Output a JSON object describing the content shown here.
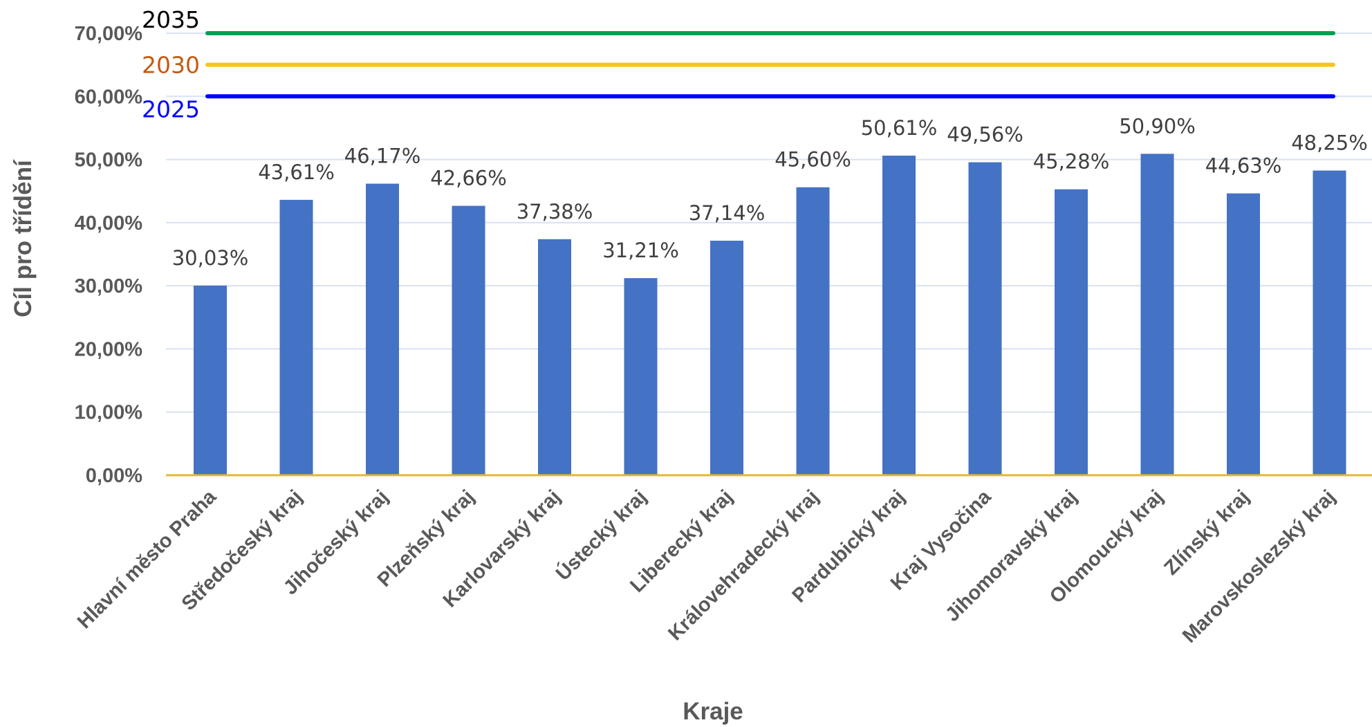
{
  "chart_data": {
    "type": "bar",
    "title": "",
    "xlabel": "Kraje",
    "ylabel": "Cíl pro třídění",
    "ylim": [
      0,
      70
    ],
    "y_ticks": [
      "0,00%",
      "10,00%",
      "20,00%",
      "30,00%",
      "40,00%",
      "50,00%",
      "60,00%",
      "70,00%"
    ],
    "grid": true,
    "bar_color": "#4472C4",
    "categories": [
      "Hlavní město Praha",
      "Středočeský kraj",
      "Jihočeský kraj",
      "Plzeňský kraj",
      "Karlovarský kraj",
      "Ústecký kraj",
      "Liberecký kraj",
      "Královehradecký kraj",
      "Pardubický kraj",
      "Kraj Vysočina",
      "Jihomoravský kraj",
      "Olomoucký kraj",
      "Zlínský kraj",
      "Marovskoslezský kraj"
    ],
    "values": [
      30.03,
      43.61,
      46.17,
      42.66,
      37.38,
      31.21,
      37.14,
      45.6,
      50.61,
      49.56,
      45.28,
      50.9,
      44.63,
      48.25
    ],
    "data_labels": [
      "30,03%",
      "43,61%",
      "46,17%",
      "42,66%",
      "37,38%",
      "31,21%",
      "37,14%",
      "45,60%",
      "50,61%",
      "49,56%",
      "45,28%",
      "50,90%",
      "44,63%",
      "48,25%"
    ],
    "target_lines": [
      {
        "label": "2035",
        "value": 70,
        "color": "#00A050",
        "label_color": "#000000"
      },
      {
        "label": "2030",
        "value": 65,
        "color": "#F5C518",
        "label_color": "#C55A11"
      },
      {
        "label": "2025",
        "value": 60,
        "color": "#0000FF",
        "label_color": "#0000FF"
      }
    ]
  }
}
